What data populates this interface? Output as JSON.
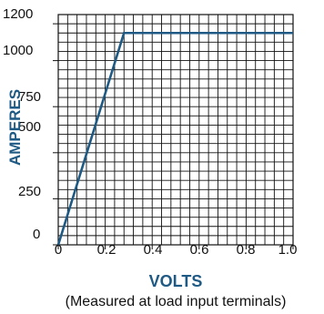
{
  "chart_data": {
    "type": "line",
    "title": "",
    "xlabel": "VOLTS",
    "ylabel": "AMPERES",
    "note": "(Measured at load input terminals)",
    "xlim": [
      0,
      1.0
    ],
    "ylim": [
      0,
      1200
    ],
    "x_ticks": [
      {
        "value": 0,
        "label": "0"
      },
      {
        "value": 0.2,
        "label": "0.2"
      },
      {
        "value": 0.4,
        "label": "0.4"
      },
      {
        "value": 0.6,
        "label": "0.6"
      },
      {
        "value": 0.8,
        "label": "0.8"
      },
      {
        "value": 1.0,
        "label": "1.0"
      }
    ],
    "y_ticks": [
      {
        "value": 0,
        "label": "0"
      },
      {
        "value": 250,
        "label": "250"
      },
      {
        "value": 500,
        "label": "500"
      },
      {
        "value": 750,
        "label": "750"
      },
      {
        "value": 1000,
        "label": "1000"
      },
      {
        "value": 1200,
        "label": "1200"
      }
    ],
    "grid": true,
    "series": [
      {
        "x": [
          0,
          0.28,
          1.0
        ],
        "y": [
          0,
          1150,
          1150
        ]
      }
    ],
    "colors": {
      "line": "#1f5a85",
      "grid": "#111111",
      "axis_title": "#1f5a85"
    }
  }
}
